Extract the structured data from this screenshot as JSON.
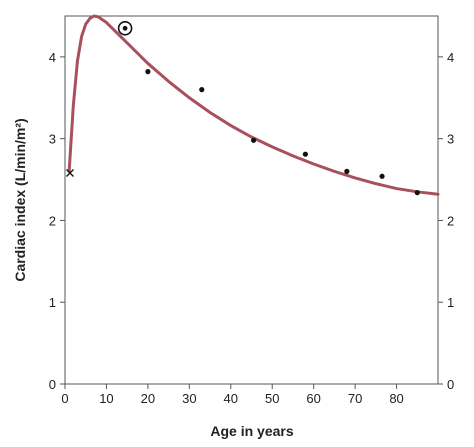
{
  "chart_data": {
    "type": "line",
    "title": "",
    "xlabel": "Age in years",
    "ylabel": "Cardiac index (L/min/m²)",
    "xlim": [
      0,
      90
    ],
    "ylim": [
      0,
      4.5
    ],
    "x_ticks": [
      0,
      10,
      20,
      30,
      40,
      50,
      60,
      70,
      80
    ],
    "y_ticks": [
      0,
      1,
      2,
      3,
      4
    ],
    "grid": false,
    "curve_color": "#a8505c",
    "series": [
      {
        "type": "line",
        "x": [
          1,
          2,
          3,
          4,
          5,
          6,
          7,
          8,
          10,
          12,
          15,
          20,
          25,
          30,
          35,
          40,
          45,
          50,
          55,
          60,
          65,
          70,
          75,
          80,
          85,
          90
        ],
        "y": [
          2.6,
          3.4,
          3.95,
          4.25,
          4.4,
          4.47,
          4.5,
          4.49,
          4.42,
          4.32,
          4.17,
          3.92,
          3.7,
          3.5,
          3.32,
          3.16,
          3.02,
          2.9,
          2.79,
          2.69,
          2.6,
          2.52,
          2.45,
          2.39,
          2.35,
          2.32
        ]
      },
      {
        "type": "scatter",
        "marker": "dot",
        "x": [
          20,
          33,
          45.5,
          58,
          68,
          76.5,
          85
        ],
        "y": [
          3.82,
          3.6,
          2.98,
          2.81,
          2.6,
          2.54,
          2.34
        ]
      },
      {
        "type": "scatter",
        "marker": "circled-dot",
        "x": [
          14.5
        ],
        "y": [
          4.35
        ]
      },
      {
        "type": "scatter",
        "marker": "cross",
        "x": [
          1.2
        ],
        "y": [
          2.58
        ]
      }
    ]
  }
}
